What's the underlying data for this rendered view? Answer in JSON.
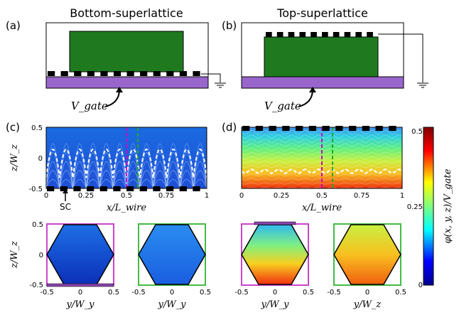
{
  "panels": {
    "a": {
      "label": "(a)",
      "title": "Bottom-superlattice",
      "gate_label": "V_gate"
    },
    "b": {
      "label": "(b)",
      "title": "Top-superlattice",
      "gate_label": "V_gate"
    },
    "c": {
      "label": "(c)",
      "sc_label": "SC",
      "xlabel": "x/L_wire",
      "ylabel": "z/W_z",
      "xticks": [
        "0",
        "0.25",
        "0.5",
        "0.75",
        "1"
      ],
      "yticks": [
        "0.5",
        "0",
        "-0.5"
      ]
    },
    "d": {
      "label": "(d)",
      "xlabel": "x/L_wire",
      "xticks": [
        "0",
        "0.25",
        "0.5",
        "0.75",
        "1"
      ]
    }
  },
  "colorbar": {
    "label": "φ(x, y, z)/V_gate",
    "ticks": [
      "0.5",
      "0.25",
      "0"
    ]
  },
  "cross_sections": {
    "xlabels": [
      "y/W_y",
      "y/W_y",
      "y/W_y",
      "y/W_z"
    ],
    "ylabel": "z/W_z",
    "xticks": [
      "-0.5",
      "0",
      "0.5"
    ],
    "yticks": [
      "0.5",
      "0",
      "-0.5"
    ]
  },
  "colors": {
    "superconductor": "#1f7a1f",
    "substrate": "#9966cc",
    "magenta_line": "#cc00cc",
    "green_line": "#22aa22"
  }
}
